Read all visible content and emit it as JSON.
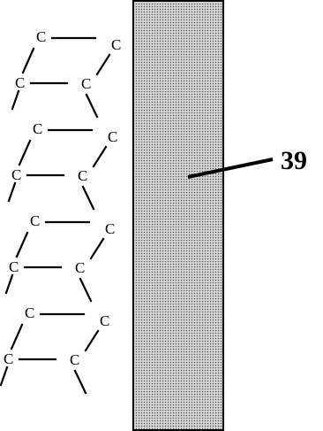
{
  "figure": {
    "atom_label": "C",
    "reference_numeral": "39"
  },
  "colors": {
    "ink": "#000000",
    "substrate_fill": "#d6d6d6",
    "substrate_dots": "#555555",
    "background": "#ffffff"
  }
}
